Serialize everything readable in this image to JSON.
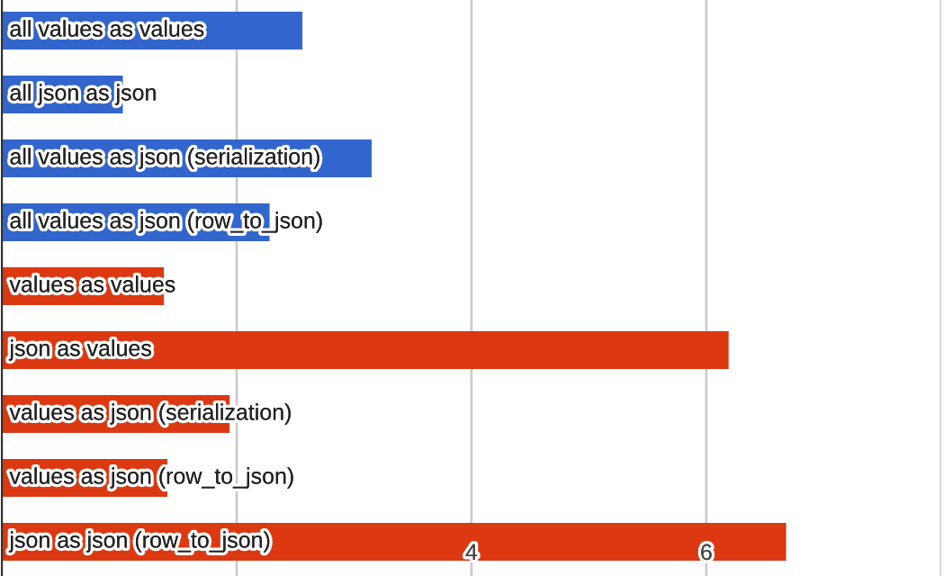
{
  "chart_data": {
    "type": "bar",
    "orientation": "horizontal",
    "categories": [
      "all values as values",
      "all json as json",
      "all values as json (serialization)",
      "all values as json (row_to_json)",
      "values as values",
      "json as values",
      "values as json (serialization)",
      "values as json (row_to_json)",
      "json as json (row_to_json)"
    ],
    "values": [
      2.56,
      1.03,
      3.15,
      2.28,
      1.38,
      6.19,
      1.94,
      1.41,
      6.68
    ],
    "colors": [
      "#3366cc",
      "#3366cc",
      "#3366cc",
      "#3366cc",
      "#dc3912",
      "#dc3912",
      "#dc3912",
      "#dc3912",
      "#dc3912"
    ],
    "xlim": [
      0,
      8
    ],
    "xticks": [
      {
        "value": 2,
        "label": null
      },
      4,
      6,
      {
        "value": 8,
        "label": null
      }
    ],
    "grid": "x"
  }
}
